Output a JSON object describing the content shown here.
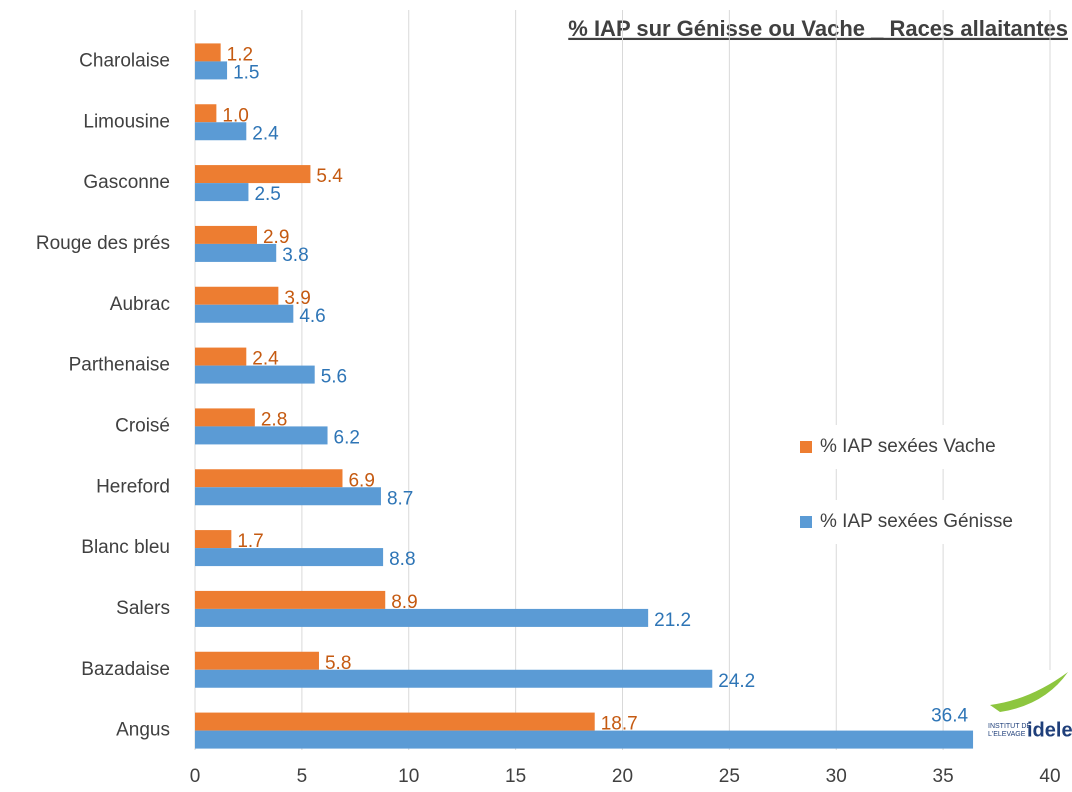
{
  "chart_data": {
    "type": "hbar",
    "title": "% IAP sur Génisse ou Vache _ Races allaitantes",
    "categories": [
      "Charolaise",
      "Limousine",
      "Gasconne",
      "Rouge des prés",
      "Aubrac",
      "Parthenaise",
      "Croisé",
      "Hereford",
      "Blanc bleu",
      "Salers",
      "Bazadaise",
      "Angus"
    ],
    "series": [
      {
        "name": "% IAP sexées Vache",
        "color": "#ed7d31",
        "values": [
          1.2,
          1.0,
          5.4,
          2.9,
          3.9,
          2.4,
          2.8,
          6.9,
          1.7,
          8.9,
          5.8,
          18.7
        ],
        "value_labels": [
          "1.2",
          "1.0",
          "5.4",
          "2.9",
          "3.9",
          "2.4",
          "2.8",
          "6.9",
          "1.7",
          "8.9",
          "5.8",
          "18.7"
        ]
      },
      {
        "name": "% IAP sexées Génisse",
        "color": "#5b9bd5",
        "values": [
          1.5,
          2.4,
          2.5,
          3.8,
          4.6,
          5.6,
          6.2,
          8.7,
          8.8,
          21.2,
          24.2,
          36.4
        ],
        "value_labels": [
          "1.5",
          "2.4",
          "2.5",
          "3.8",
          "4.6",
          "5.6",
          "6.2",
          "8.7",
          "8.8",
          "21.2",
          "24.2",
          "36.4"
        ]
      }
    ],
    "xlim": [
      0,
      40
    ],
    "xticks": [
      0,
      5,
      10,
      15,
      20,
      25,
      30,
      35,
      40
    ],
    "grid": true,
    "legend": "right",
    "annotations": [
      "INSTITUT DE",
      "L'ELEVAGE",
      "idele"
    ]
  }
}
